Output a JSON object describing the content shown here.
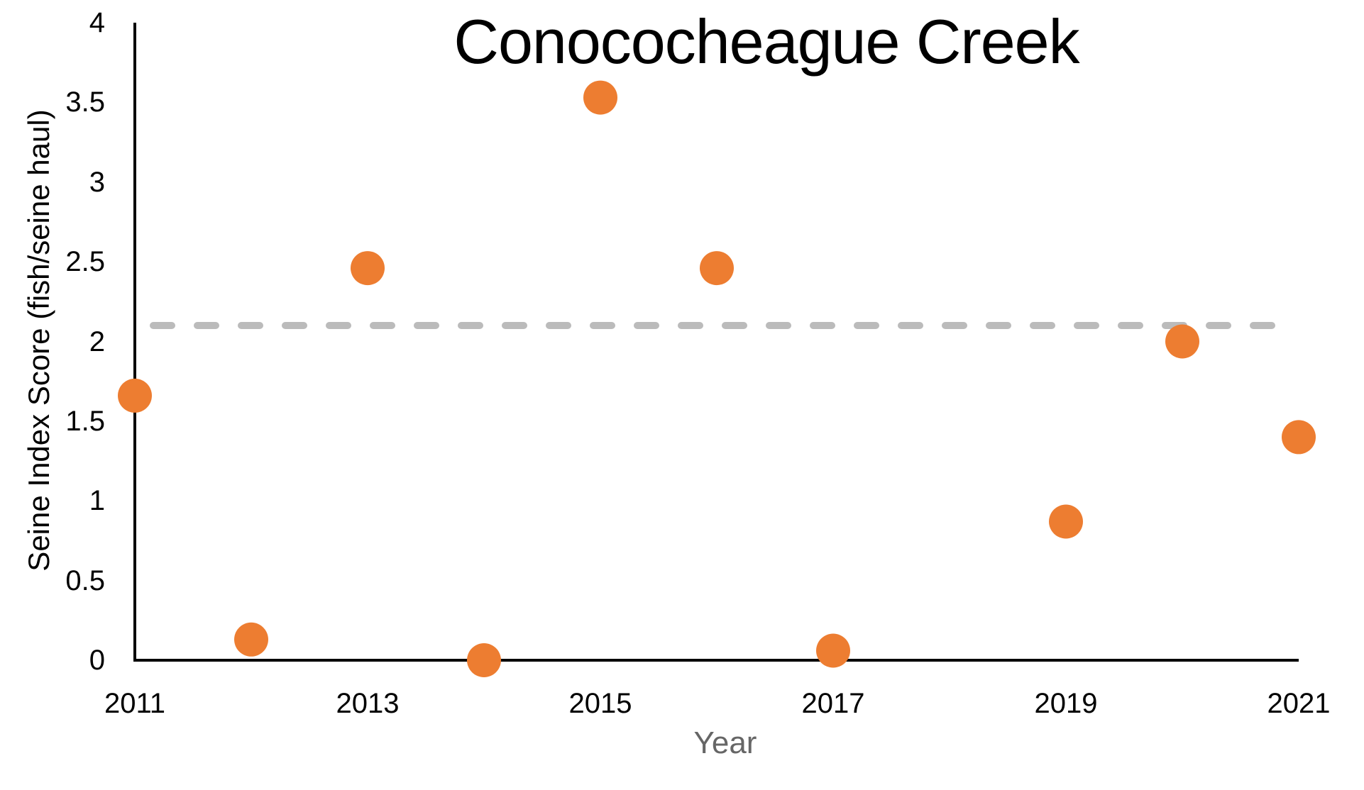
{
  "chart_data": {
    "type": "scatter",
    "title": "Conococheague Creek",
    "xlabel": "Year",
    "ylabel": "Seine Index Score (fish/seine haul)",
    "x": [
      2011,
      2012,
      2013,
      2014,
      2015,
      2016,
      2017,
      2019,
      2020,
      2021
    ],
    "y": [
      1.66,
      0.13,
      2.46,
      0.0,
      3.53,
      2.46,
      0.06,
      0.87,
      2.0,
      1.4
    ],
    "series_name": "Seine Index Score",
    "xlim": [
      2011,
      2021
    ],
    "ylim": [
      0,
      4
    ],
    "x_tick_labels": [
      "2011",
      "2013",
      "2015",
      "2017",
      "2019",
      "2021"
    ],
    "y_tick_labels": [
      "0",
      "0.5",
      "1",
      "1.5",
      "2",
      "2.5",
      "3",
      "3.5",
      "4"
    ],
    "reference_line": {
      "value": 2.1,
      "style": "dashed",
      "color": "#BBBBBB"
    },
    "marker_color": "#ED7D31",
    "marker_radius_px": 24,
    "axis_color": "#000000",
    "grid": false,
    "legend": false,
    "missing_years": [
      2018
    ]
  }
}
